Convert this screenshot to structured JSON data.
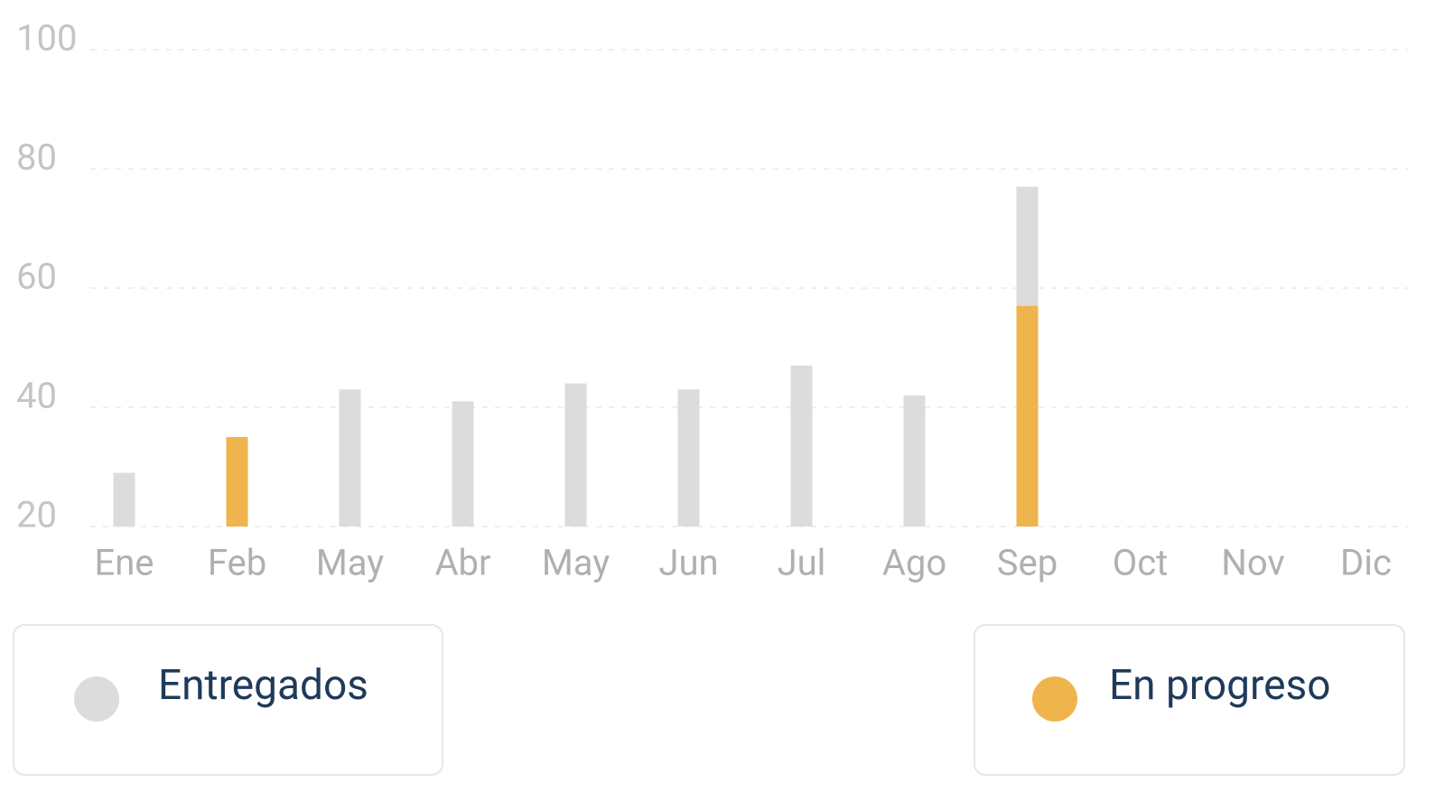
{
  "chart_data": {
    "type": "bar",
    "categories": [
      "Ene",
      "Feb",
      "May",
      "Abr",
      "May",
      "Jun",
      "Jul",
      "Ago",
      "Sep",
      "Oct",
      "Nov",
      "Dic"
    ],
    "series": [
      {
        "name": "Entregados",
        "color": "#dcdcdc",
        "values": [
          29,
          null,
          43,
          41,
          44,
          43,
          47,
          42,
          77,
          null,
          null,
          null
        ]
      },
      {
        "name": "En progreso",
        "color": "#f0b44c",
        "values": [
          null,
          35,
          null,
          null,
          null,
          null,
          null,
          null,
          57,
          null,
          null,
          null
        ]
      }
    ],
    "ylim": [
      20,
      100
    ],
    "yticks": [
      20,
      40,
      60,
      80,
      100
    ],
    "grid": true
  }
}
